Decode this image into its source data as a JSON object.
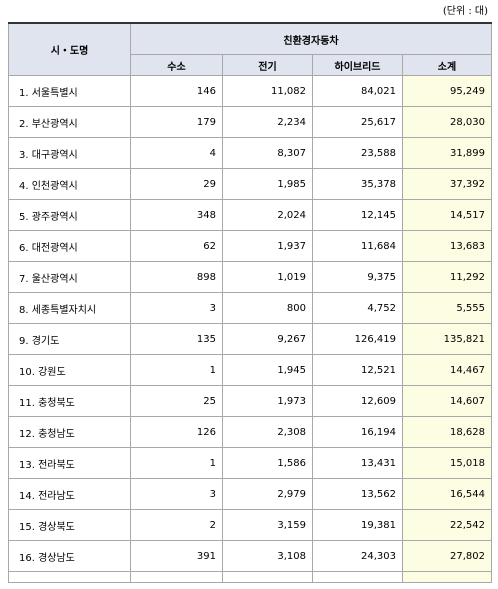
{
  "unit_note": "(단위 : 대)",
  "table": {
    "header": {
      "region": "시・도명",
      "group": "친환경자동차",
      "columns": [
        "수소",
        "전기",
        "하이브리드",
        "소계"
      ]
    },
    "rows": [
      [
        "1. 서울특별시",
        "146",
        "11,082",
        "84,021",
        "95,249"
      ],
      [
        "2. 부산광역시",
        "179",
        "2,234",
        "25,617",
        "28,030"
      ],
      [
        "3. 대구광역시",
        "4",
        "8,307",
        "23,588",
        "31,899"
      ],
      [
        "4. 인천광역시",
        "29",
        "1,985",
        "35,378",
        "37,392"
      ],
      [
        "5. 광주광역시",
        "348",
        "2,024",
        "12,145",
        "14,517"
      ],
      [
        "6. 대전광역시",
        "62",
        "1,937",
        "11,684",
        "13,683"
      ],
      [
        "7. 울산광역시",
        "898",
        "1,019",
        "9,375",
        "11,292"
      ],
      [
        "8. 세종특별자치시",
        "3",
        "800",
        "4,752",
        "5,555"
      ],
      [
        "9. 경기도",
        "135",
        "9,267",
        "126,419",
        "135,821"
      ],
      [
        "10. 강원도",
        "1",
        "1,945",
        "12,521",
        "14,467"
      ],
      [
        "11. 충청북도",
        "25",
        "1,973",
        "12,609",
        "14,607"
      ],
      [
        "12. 충청남도",
        "126",
        "2,308",
        "16,194",
        "18,628"
      ],
      [
        "13. 전라북도",
        "1",
        "1,586",
        "13,431",
        "15,018"
      ],
      [
        "14. 전라남도",
        "3",
        "2,979",
        "13,562",
        "16,544"
      ],
      [
        "15. 경상북도",
        "2",
        "3,159",
        "19,381",
        "22,542"
      ],
      [
        "16. 경상남도",
        "391",
        "3,108",
        "24,303",
        "27,802"
      ]
    ]
  }
}
